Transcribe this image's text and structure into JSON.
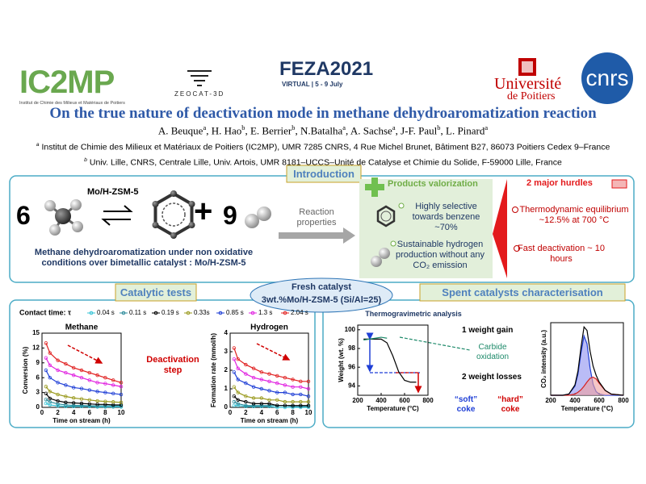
{
  "logos": {
    "ic2mp": "IC2MP",
    "ic2mp_subtitle": "Institut de Chimie des Milieux et Matériaux de Poitiers",
    "zeocat": "ZEOCAT-3D",
    "feza": "FEZA2021",
    "feza_subtitle": "VIRTUAL | 5 - 9 July",
    "poitiers": [
      "Université",
      "de Poitiers"
    ],
    "cnrs": "cnrs"
  },
  "header": {
    "title": "On the true nature of deactivation mode in methane dehydroaromatization reaction",
    "authors": [
      {
        "name": "A. Beuque",
        "aff": "a"
      },
      {
        "name": ", H. Hao",
        "aff": "b"
      },
      {
        "name": ", E. Berrier",
        "aff": "b"
      },
      {
        "name": ", N.Batalha",
        "aff": "a"
      },
      {
        "name": ", A. Sachse",
        "aff": "a"
      },
      {
        "name": ", J-F. Paul",
        "aff": "b"
      },
      {
        "name": ", L. Pinard",
        "aff": "a"
      }
    ],
    "affiliations": [
      {
        "mark": "a",
        "text": "Institut de Chimie des Milieux et Matériaux de Poitiers (IC2MP), UMR 7285 CNRS, 4 Rue Michel Brunet, Bâtiment B27, 86073 Poitiers Cedex 9–France"
      },
      {
        "mark": "b",
        "text": "Univ. Lille, CNRS, Centrale Lille, Univ. Artois, UMR 8181–UCCS–Unité de Catalyse et Chimie du Solide, F-59000 Lille, France"
      }
    ]
  },
  "introduction": {
    "heading": "Introduction",
    "reaction": {
      "methane_coeff": 6,
      "catalyst": "Mo/H-ZSM-5",
      "plus": "+",
      "hydrogen_coeff": 9
    },
    "caption": "Methane dehydroaromatization under non oxidative conditions over bimetallic catalyst : Mo/H-ZSM-5",
    "reaction_properties": "Reaction properties",
    "products": {
      "heading": "Products valorization",
      "items": [
        "Highly selective towards benzene ~70%",
        "Sustainable hydrogen production without any CO₂ emission"
      ]
    },
    "hurdles": {
      "heading": "2 major hurdles",
      "items": [
        "Thermodynamic equilibrium ~12.5% at 700 °C",
        "Fast deactivation ~ 10 hours"
      ]
    }
  },
  "fresh_catalyst": {
    "heading": "Fresh catalyst",
    "composition": "3wt.%Mo/H-ZSM-5 (Si/Al=25)"
  },
  "catalytic_tests": {
    "heading": "Catalytic tests",
    "contact_time_label": "Contact time: τ",
    "legend": [
      {
        "name": "0.04 s",
        "color": "#33c3d6"
      },
      {
        "name": "0.11 s",
        "color": "#2a8a9a"
      },
      {
        "name": "0.19 s",
        "color": "#000000"
      },
      {
        "name": "0.33s",
        "color": "#9a9a1e"
      },
      {
        "name": "0.85 s",
        "color": "#1f3fd6"
      },
      {
        "name": "1.3 s",
        "color": "#e020e0"
      },
      {
        "name": "2.04 s",
        "color": "#e02020"
      }
    ],
    "annotation": "Deactivation step",
    "charts": [
      {
        "type": "line",
        "title": "Methane",
        "ylabel": "Conversion (%)",
        "xlabel": "Time on stream (h)",
        "markers": true,
        "xlim": [
          0,
          10
        ],
        "xticks": [
          0,
          2,
          4,
          6,
          8,
          10
        ],
        "ylim": [
          0,
          15
        ],
        "yticks": [
          0,
          3,
          6,
          9,
          12,
          15
        ],
        "x": [
          0.5,
          1,
          2,
          3,
          4,
          5,
          6,
          7,
          8,
          9,
          10
        ],
        "series": [
          {
            "values": [
              0.8,
              0.5,
              0.3,
              0.2,
              0.2,
              0.2,
              0.2,
              0.1,
              0.1,
              0.1,
              0.1
            ]
          },
          {
            "values": [
              1.6,
              1.1,
              0.7,
              0.5,
              0.4,
              0.4,
              0.3,
              0.3,
              0.3,
              0.3,
              0.3
            ]
          },
          {
            "values": [
              2.8,
              1.8,
              1.3,
              1,
              0.9,
              0.8,
              0.7,
              0.6,
              0.6,
              0.5,
              0.5
            ]
          },
          {
            "values": [
              4.2,
              3.2,
              2.6,
              2.2,
              1.9,
              1.7,
              1.5,
              1.3,
              1.2,
              1.1,
              1
            ]
          },
          {
            "values": [
              7.5,
              6,
              5,
              4.5,
              4,
              3.8,
              3.5,
              3.2,
              3,
              2.8,
              2.6
            ]
          },
          {
            "values": [
              10,
              8.5,
              7.5,
              7,
              6.5,
              6,
              5.5,
              5,
              4.8,
              4.5,
              4.2
            ]
          },
          {
            "values": [
              13,
              11,
              9.5,
              8.8,
              8,
              7.5,
              7,
              6.5,
              6,
              5.5,
              5
            ]
          }
        ]
      },
      {
        "type": "line",
        "title": "Hydrogen",
        "ylabel": "Formation rate (mmol/h)",
        "xlabel": "Time on stream (h)",
        "markers": true,
        "xlim": [
          0,
          10
        ],
        "xticks": [
          0,
          2,
          4,
          6,
          8,
          10
        ],
        "ylim": [
          0,
          4
        ],
        "yticks": [
          0,
          1,
          2,
          3,
          4
        ],
        "x": [
          0.5,
          1,
          2,
          3,
          4,
          5,
          6,
          7,
          8,
          9,
          10
        ],
        "series": [
          {
            "values": [
              0.1,
              0.1,
              0.05,
              0.05,
              0.05,
              0.05,
              0,
              0,
              0,
              0,
              0
            ]
          },
          {
            "values": [
              0.3,
              0.2,
              0.1,
              0.1,
              0.1,
              0.1,
              0.1,
              0.1,
              0.05,
              0.05,
              0.05
            ]
          },
          {
            "values": [
              0.6,
              0.4,
              0.3,
              0.2,
              0.2,
              0.2,
              0.1,
              0.1,
              0.1,
              0.1,
              0.1
            ]
          },
          {
            "values": [
              1.1,
              0.8,
              0.6,
              0.5,
              0.5,
              0.4,
              0.4,
              0.3,
              0.3,
              0.3,
              0.3
            ]
          },
          {
            "values": [
              1.9,
              1.5,
              1.3,
              1.1,
              1,
              0.9,
              0.8,
              0.8,
              0.7,
              0.7,
              0.6
            ]
          },
          {
            "values": [
              2.6,
              2.1,
              1.8,
              1.6,
              1.5,
              1.4,
              1.3,
              1.2,
              1.1,
              1.1,
              1
            ]
          },
          {
            "values": [
              3.2,
              2.6,
              2.3,
              2.1,
              1.9,
              1.8,
              1.7,
              1.6,
              1.5,
              1.4,
              1.4
            ]
          }
        ]
      }
    ]
  },
  "spent": {
    "heading": "Spent catalysts characterisation",
    "tga_title": "Thermogravimetric analysis",
    "annotations": {
      "gain": "1 weight gain",
      "carbide": "Carbide oxidation",
      "losses": "2 weight losses",
      "soft": "“soft” coke",
      "hard": "“hard” coke"
    },
    "tga": {
      "type": "line",
      "ylabel": "Weight (wt. %)",
      "xlabel": "Temperature (°C)",
      "xlim": [
        200,
        800
      ],
      "xticks": [
        200,
        400,
        600,
        800
      ],
      "ylim": [
        93,
        100.5
      ],
      "yticks": [
        94,
        96,
        98,
        100
      ],
      "series": [
        {
          "color": "#000000",
          "x": [
            250,
            300,
            350,
            400,
            450,
            500,
            550,
            600,
            650,
            700
          ],
          "values": [
            99,
            99,
            99,
            99,
            98.6,
            97.2,
            95.5,
            94.6,
            94.4,
            94.4
          ]
        },
        {
          "color": "#1e8a6a",
          "x": [
            250,
            300,
            350,
            400,
            450
          ],
          "values": [
            98.9,
            99,
            99.1,
            99.2,
            99.1
          ]
        }
      ]
    },
    "co2": {
      "type": "line",
      "ylabel": "CO₂ intensity (a.u.)",
      "xlabel": "Temperature (°C)",
      "xlim": [
        200,
        800
      ],
      "xticks": [
        200,
        400,
        600,
        800
      ],
      "ylim": [
        0,
        1.2
      ],
      "series": [
        {
          "color": "#1f3fd6",
          "fill": "#8c8ff0",
          "x": [
            200,
            300,
            350,
            400,
            425,
            450,
            475,
            500,
            525,
            550,
            575,
            600,
            650,
            700,
            800
          ],
          "values": [
            0,
            0,
            0.02,
            0.15,
            0.35,
            0.7,
            0.98,
            0.85,
            0.45,
            0.18,
            0.06,
            0.02,
            0,
            0,
            0
          ]
        },
        {
          "color": "#d62020",
          "fill": "#f0a0a0",
          "x": [
            200,
            300,
            350,
            400,
            425,
            450,
            475,
            500,
            525,
            550,
            575,
            600,
            650,
            700,
            800
          ],
          "values": [
            0,
            0,
            0,
            0.02,
            0.05,
            0.09,
            0.15,
            0.22,
            0.28,
            0.3,
            0.27,
            0.2,
            0.08,
            0.02,
            0
          ]
        },
        {
          "color": "#000000",
          "x": [
            200,
            300,
            350,
            400,
            425,
            450,
            475,
            500,
            525,
            550,
            575,
            600,
            650,
            700,
            800
          ],
          "values": [
            0,
            0,
            0.02,
            0.17,
            0.4,
            0.79,
            1.13,
            1.07,
            0.73,
            0.48,
            0.33,
            0.22,
            0.08,
            0.02,
            0
          ]
        }
      ]
    }
  }
}
